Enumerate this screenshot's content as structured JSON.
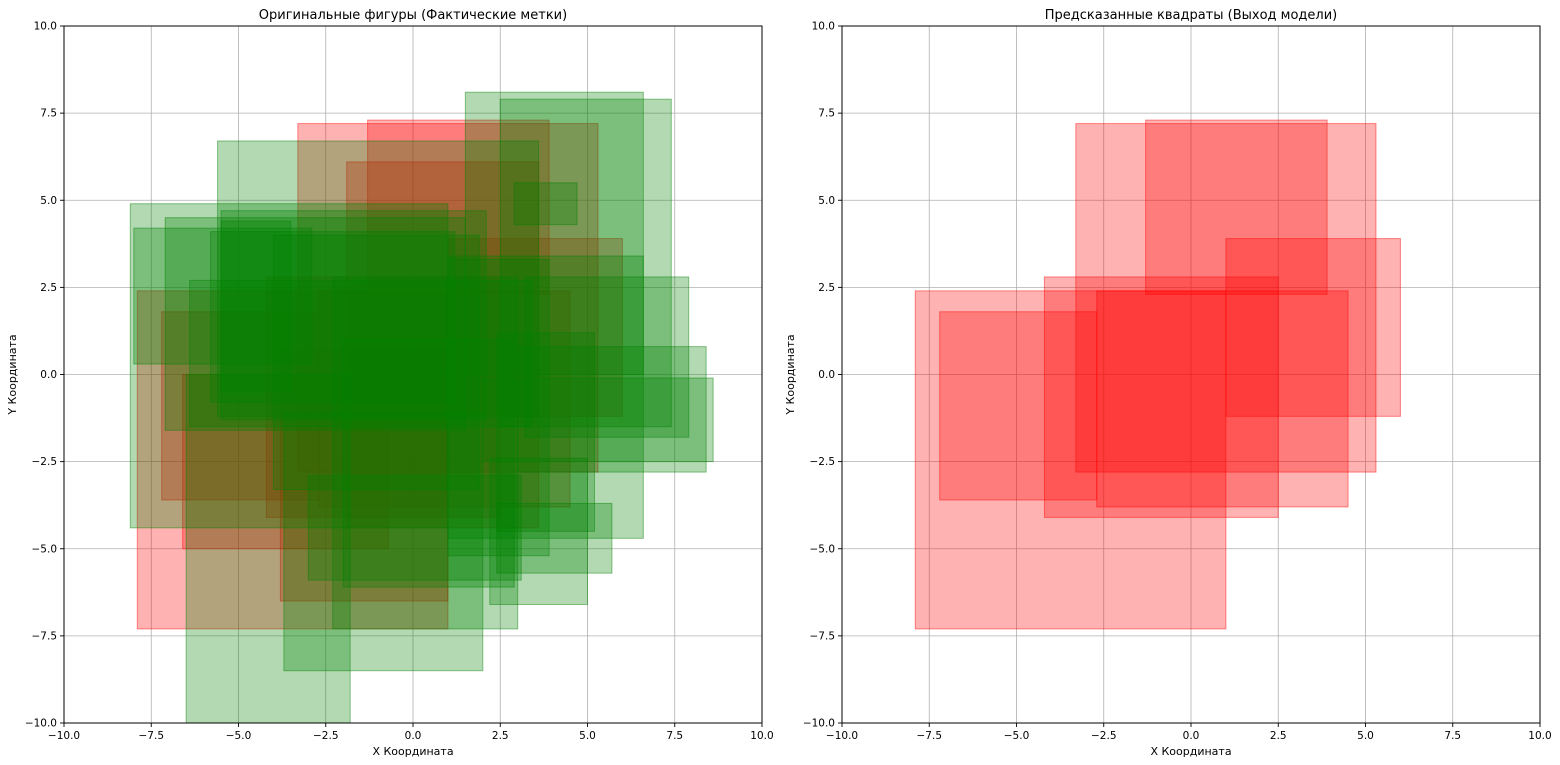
{
  "chart_data": [
    {
      "type": "rectangles",
      "title": "Оригинальные фигуры (Фактические метки)",
      "xlabel": "X Координата",
      "ylabel": "Y Координата",
      "xlim": [
        -10,
        10
      ],
      "ylim": [
        -10,
        10
      ],
      "xticks": [
        "−10.0",
        "−7.5",
        "−5.0",
        "−2.5",
        "0.0",
        "2.5",
        "5.0",
        "7.5",
        "10.0"
      ],
      "yticks": [
        "−10.0",
        "−7.5",
        "−5.0",
        "−2.5",
        "0.0",
        "2.5",
        "5.0",
        "7.5",
        "10.0"
      ],
      "grid": true,
      "series": [
        {
          "color": "#ff0000",
          "opacity": 0.3,
          "rects": [
            [
              -7.9,
              -7.3,
              1.0,
              2.4
            ],
            [
              -7.2,
              -3.6,
              -2.7,
              1.8
            ],
            [
              -4.2,
              -4.1,
              2.5,
              2.8
            ],
            [
              -3.3,
              -2.8,
              5.3,
              7.2
            ],
            [
              -1.3,
              2.3,
              3.9,
              7.3
            ],
            [
              -2.7,
              -3.8,
              4.5,
              2.4
            ],
            [
              1.0,
              -1.2,
              6.0,
              3.9
            ],
            [
              -3.8,
              -6.5,
              1.0,
              0.7
            ],
            [
              -1.9,
              -4.4,
              3.6,
              6.1
            ],
            [
              -6.6,
              -5.0,
              -0.7,
              0.0
            ]
          ]
        },
        {
          "color": "#008000",
          "opacity": 0.3,
          "rects": [
            [
              1.5,
              0.0,
              6.6,
              8.1
            ],
            [
              2.5,
              -1.5,
              7.4,
              7.9
            ],
            [
              -5.6,
              -1.2,
              3.6,
              6.7
            ],
            [
              -8.1,
              -4.4,
              1.0,
              4.9
            ],
            [
              -8.0,
              0.3,
              -2.9,
              4.2
            ],
            [
              -7.1,
              -1.6,
              1.5,
              4.5
            ],
            [
              -5.5,
              -1.3,
              2.1,
              4.7
            ],
            [
              -5.8,
              -0.8,
              1.2,
              4.1
            ],
            [
              -4.0,
              -3.3,
              1.9,
              4.0
            ],
            [
              -6.4,
              -1.5,
              3.4,
              2.7
            ],
            [
              -6.5,
              -10.0,
              -1.8,
              0.0
            ],
            [
              -3.7,
              -8.5,
              2.0,
              -1.1
            ],
            [
              -2.3,
              -7.3,
              3.0,
              2.8
            ],
            [
              1.0,
              -4.7,
              6.6,
              3.4
            ],
            [
              2.0,
              -2.5,
              8.6,
              -0.1
            ],
            [
              3.0,
              -2.8,
              8.4,
              0.8
            ],
            [
              3.2,
              -1.8,
              7.9,
              2.8
            ],
            [
              2.2,
              -6.6,
              5.0,
              -2.4
            ],
            [
              2.4,
              -5.7,
              5.7,
              -3.7
            ],
            [
              -3.0,
              -5.9,
              3.1,
              -2.9
            ],
            [
              -2.0,
              -6.1,
              2.9,
              1.0
            ],
            [
              1.0,
              -5.2,
              3.9,
              3.3
            ],
            [
              -5.5,
              -0.5,
              -3.5,
              4.4
            ],
            [
              2.9,
              4.3,
              4.7,
              5.5
            ],
            [
              2.4,
              -4.5,
              5.2,
              1.2
            ]
          ]
        }
      ]
    },
    {
      "type": "rectangles",
      "title": "Предсказанные квадраты (Выход модели)",
      "xlabel": "X Координата",
      "ylabel": "Y Координата",
      "xlim": [
        -10,
        10
      ],
      "ylim": [
        -10,
        10
      ],
      "xticks": [
        "−10.0",
        "−7.5",
        "−5.0",
        "−2.5",
        "0.0",
        "2.5",
        "5.0",
        "7.5",
        "10.0"
      ],
      "yticks": [
        "−10.0",
        "−7.5",
        "−5.0",
        "−2.5",
        "0.0",
        "2.5",
        "5.0",
        "7.5",
        "10.0"
      ],
      "grid": true,
      "series": [
        {
          "color": "#ff0000",
          "opacity": 0.3,
          "rects": [
            [
              -7.9,
              -7.3,
              1.0,
              2.4
            ],
            [
              -7.2,
              -3.6,
              -2.7,
              1.8
            ],
            [
              -4.2,
              -4.1,
              2.5,
              2.8
            ],
            [
              -3.3,
              -2.8,
              5.3,
              7.2
            ],
            [
              -1.3,
              2.3,
              3.9,
              7.3
            ],
            [
              -2.7,
              -3.8,
              4.5,
              2.4
            ],
            [
              1.0,
              -1.2,
              6.0,
              3.9
            ]
          ]
        }
      ]
    }
  ]
}
